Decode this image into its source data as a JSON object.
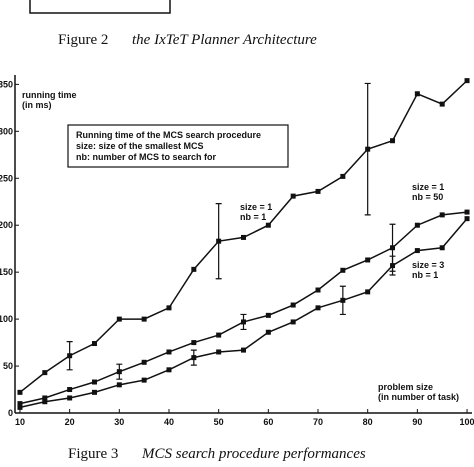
{
  "figure2_caption": {
    "label": "Figure 2",
    "text": "the IxTeT Planner Architecture"
  },
  "chart_data": {
    "type": "line",
    "y_label": [
      "running time",
      "(in ms)"
    ],
    "x_label": [
      "problem size",
      "(in number of task)"
    ],
    "legend_box": [
      "Running time of the MCS search procedure",
      "size: size of the smallest MCS",
      "nb: number of MCS to search for"
    ],
    "annotations": [
      [
        "size = 1",
        "nb = 1"
      ],
      [
        "size = 1",
        "nb = 50"
      ],
      [
        "size = 3",
        "nb = 1"
      ]
    ],
    "x": [
      10,
      15,
      20,
      25,
      30,
      35,
      40,
      45,
      50,
      55,
      60,
      65,
      70,
      75,
      80,
      85,
      90,
      95,
      100
    ],
    "series": [
      {
        "color": "#111111",
        "values": [
          22,
          43,
          61,
          74,
          100,
          100,
          112,
          153,
          183,
          187,
          200,
          231,
          236,
          252,
          281,
          290,
          340,
          329,
          354
        ],
        "errors": [
          null,
          null,
          15,
          null,
          null,
          null,
          null,
          null,
          40,
          null,
          null,
          null,
          null,
          null,
          70,
          null,
          null,
          null,
          null
        ]
      },
      {
        "color": "#111111",
        "values": [
          10,
          16,
          25,
          33,
          44,
          54,
          65,
          75,
          83,
          97,
          104,
          115,
          131,
          152,
          163,
          176,
          200,
          211,
          214
        ],
        "errors": [
          null,
          null,
          null,
          null,
          8,
          null,
          null,
          null,
          null,
          8,
          null,
          null,
          null,
          null,
          null,
          25,
          null,
          null,
          null
        ]
      },
      {
        "color": "#111111",
        "values": [
          6,
          12,
          16,
          22,
          30,
          35,
          46,
          59,
          65,
          67,
          86,
          97,
          112,
          120,
          129,
          157,
          173,
          176,
          207
        ],
        "errors": [
          null,
          null,
          null,
          null,
          null,
          null,
          null,
          8,
          null,
          null,
          null,
          null,
          null,
          15,
          null,
          10,
          null,
          null,
          null
        ]
      }
    ],
    "xlim": [
      9,
      101
    ],
    "ylim": [
      0,
      360
    ],
    "xticks": [
      10,
      20,
      30,
      40,
      50,
      60,
      70,
      80,
      90,
      100
    ],
    "yticks": [
      0,
      50,
      100,
      150,
      200,
      250,
      300,
      350
    ]
  },
  "figure3_caption": {
    "label": "Figure 3",
    "text": "MCS search procedure performances"
  }
}
